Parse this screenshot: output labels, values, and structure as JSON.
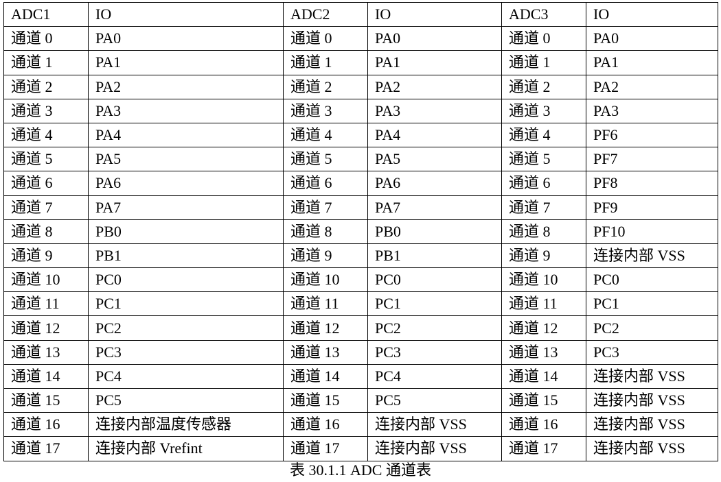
{
  "table": {
    "headers": [
      "ADC1",
      "IO",
      "ADC2",
      "IO",
      "ADC3",
      "IO"
    ],
    "rows": [
      [
        "通道 0",
        "PA0",
        "通道 0",
        "PA0",
        "通道 0",
        "PA0"
      ],
      [
        "通道 1",
        "PA1",
        "通道 1",
        "PA1",
        "通道 1",
        "PA1"
      ],
      [
        "通道 2",
        "PA2",
        "通道 2",
        "PA2",
        "通道 2",
        "PA2"
      ],
      [
        "通道 3",
        "PA3",
        "通道 3",
        "PA3",
        "通道 3",
        "PA3"
      ],
      [
        "通道 4",
        "PA4",
        "通道 4",
        "PA4",
        "通道 4",
        "PF6"
      ],
      [
        "通道 5",
        "PA5",
        "通道 5",
        "PA5",
        "通道 5",
        "PF7"
      ],
      [
        "通道 6",
        "PA6",
        "通道 6",
        "PA6",
        "通道 6",
        "PF8"
      ],
      [
        "通道 7",
        "PA7",
        "通道 7",
        "PA7",
        "通道 7",
        "PF9"
      ],
      [
        "通道 8",
        "PB0",
        "通道 8",
        "PB0",
        "通道 8",
        "PF10"
      ],
      [
        "通道 9",
        "PB1",
        "通道 9",
        "PB1",
        "通道 9",
        "连接内部 VSS"
      ],
      [
        "通道 10",
        "PC0",
        "通道 10",
        "PC0",
        "通道 10",
        "PC0"
      ],
      [
        "通道 11",
        "PC1",
        "通道 11",
        "PC1",
        "通道 11",
        "PC1"
      ],
      [
        "通道 12",
        "PC2",
        "通道 12",
        "PC2",
        "通道 12",
        "PC2"
      ],
      [
        "通道 13",
        "PC3",
        "通道 13",
        "PC3",
        "通道 13",
        "PC3"
      ],
      [
        "通道 14",
        "PC4",
        "通道 14",
        "PC4",
        "通道 14",
        "连接内部 VSS"
      ],
      [
        "通道 15",
        "PC5",
        "通道 15",
        "PC5",
        "通道 15",
        "连接内部 VSS"
      ],
      [
        "通道 16",
        "连接内部温度传感器",
        "通道 16",
        "连接内部 VSS",
        "通道 16",
        "连接内部 VSS"
      ],
      [
        "通道 17",
        "连接内部 Vrefint",
        "通道 17",
        "连接内部 VSS",
        "通道 17",
        "连接内部 VSS"
      ]
    ]
  },
  "caption": "表 30.1.1 ADC 通道表"
}
